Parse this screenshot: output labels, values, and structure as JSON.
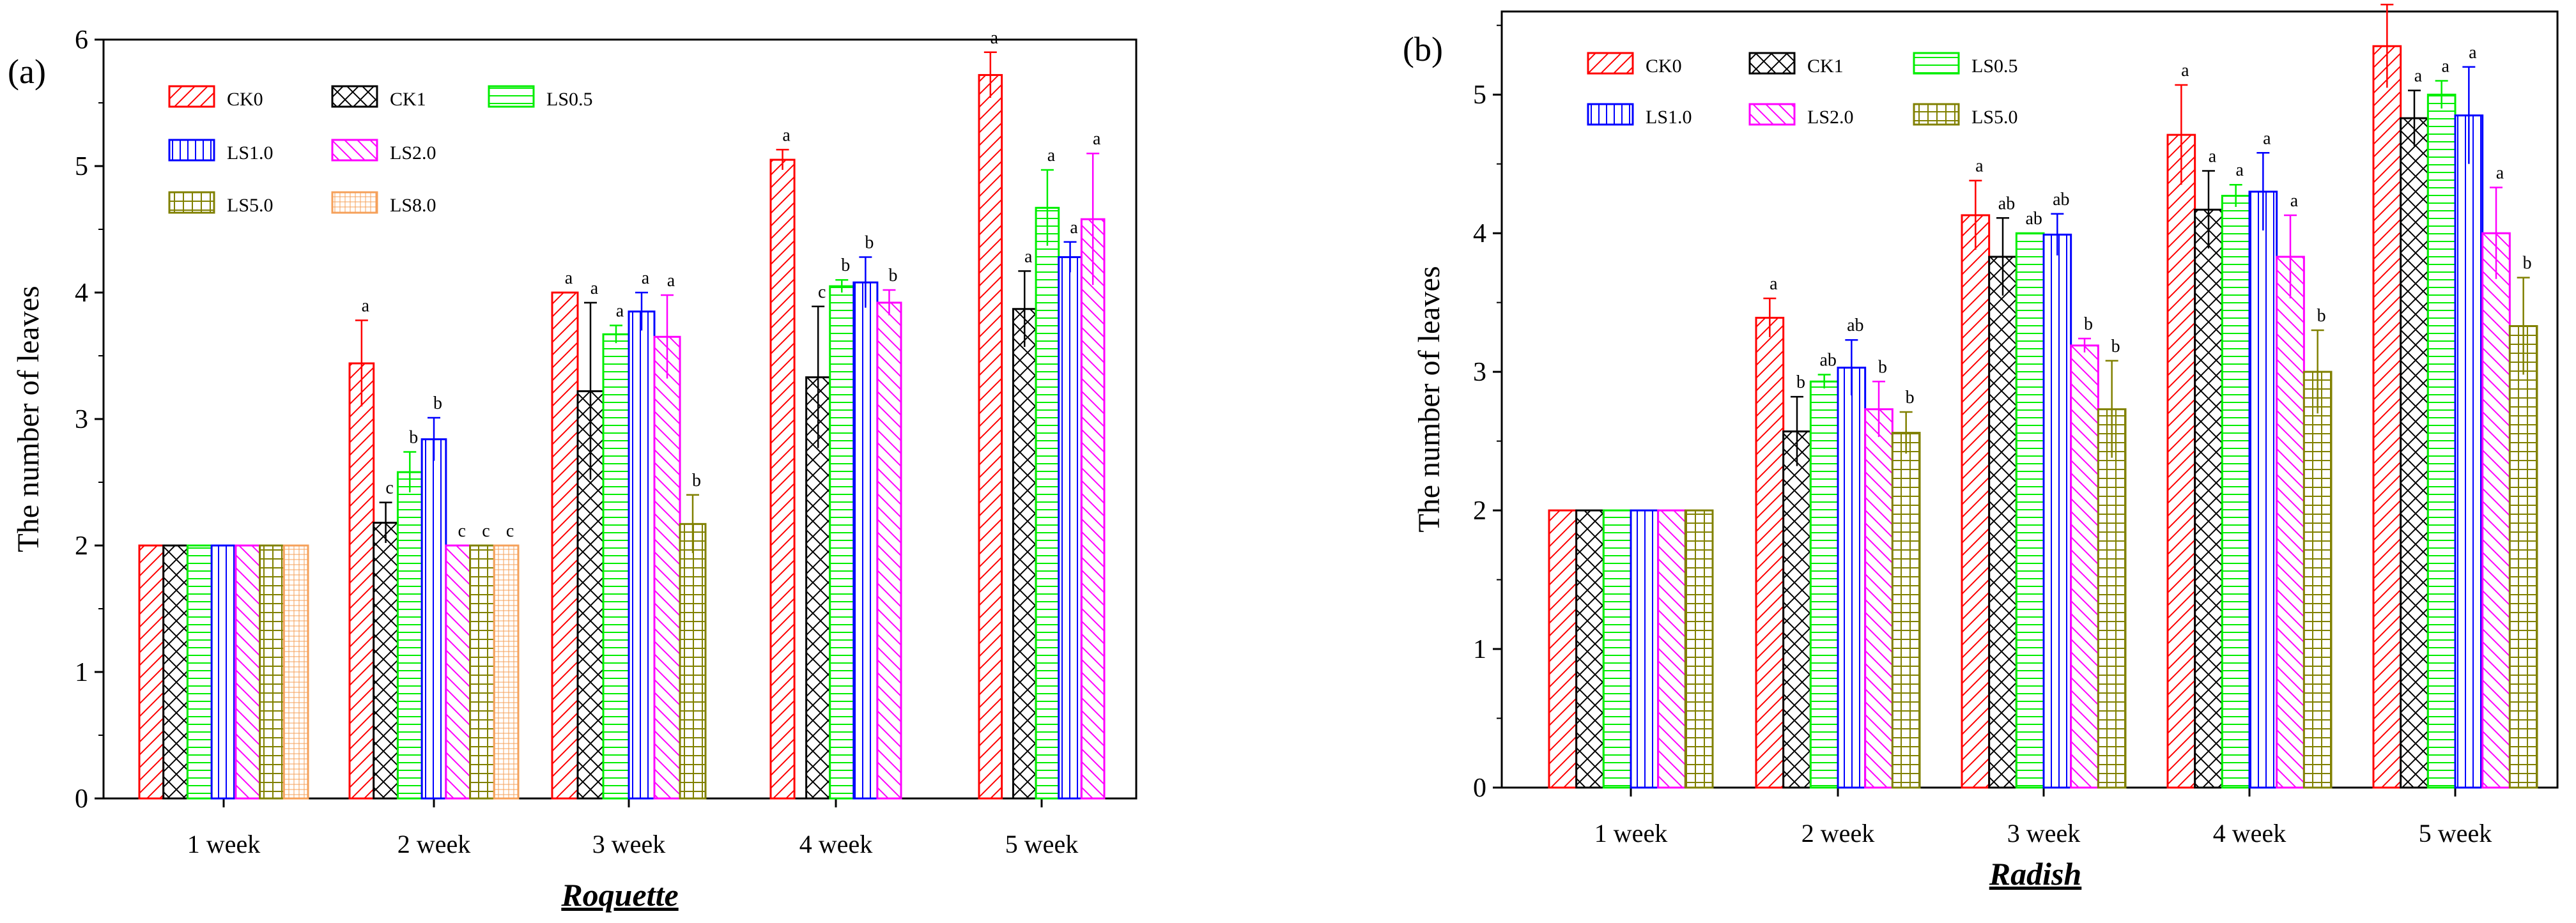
{
  "chart_data": [
    {
      "type": "bar",
      "panel_label": "(a)",
      "title": "Roquette",
      "xlabel": "",
      "ylabel": "The number of leaves",
      "ylim": [
        0,
        6
      ],
      "yticks": [
        "0",
        "1",
        "2",
        "3",
        "4",
        "5",
        "6"
      ],
      "categories": [
        "1 week",
        "2 week",
        "3 week",
        "4 week",
        "5 week"
      ],
      "series": [
        {
          "name": "CK0",
          "color": "#ff0000",
          "pattern": "diag",
          "values": [
            2,
            3.44,
            4.0,
            5.05,
            5.72
          ],
          "errors": [
            0,
            0.34,
            0,
            0.08,
            0.18
          ],
          "labels": [
            "",
            "a",
            "a",
            "a",
            "a"
          ]
        },
        {
          "name": "CK1",
          "color": "#000000",
          "pattern": "cross",
          "values": [
            2,
            2.18,
            3.22,
            3.33,
            3.87
          ],
          "errors": [
            0,
            0.16,
            0.7,
            0.56,
            0.3
          ],
          "labels": [
            "",
            "c",
            "a",
            "c",
            "a"
          ]
        },
        {
          "name": "LS0.5",
          "color": "#00ee00",
          "pattern": "hlines",
          "values": [
            2,
            2.58,
            3.67,
            4.05,
            4.67
          ],
          "errors": [
            0,
            0.16,
            0.07,
            0.05,
            0.3
          ],
          "labels": [
            "",
            "b",
            "a",
            "b",
            "a"
          ]
        },
        {
          "name": "LS1.0",
          "color": "#0000ff",
          "pattern": "vlines",
          "values": [
            2,
            2.84,
            3.85,
            4.08,
            4.28
          ],
          "errors": [
            0,
            0.17,
            0.15,
            0.2,
            0.12
          ],
          "labels": [
            "",
            "b",
            "a",
            "b",
            "a"
          ]
        },
        {
          "name": "LS2.0",
          "color": "#ff00ff",
          "pattern": "bdiag",
          "values": [
            2,
            2.0,
            3.65,
            3.92,
            4.58
          ],
          "errors": [
            0,
            0,
            0.33,
            0.1,
            0.52
          ],
          "labels": [
            "",
            "c",
            "a",
            "b",
            "a"
          ]
        },
        {
          "name": "LS5.0",
          "color": "#808000",
          "pattern": "grid",
          "values": [
            2,
            2.0,
            2.17,
            null,
            null
          ],
          "errors": [
            0,
            0,
            0.23,
            null,
            null
          ],
          "labels": [
            "",
            "c",
            "b",
            "",
            ""
          ]
        },
        {
          "name": "LS8.0",
          "color": "#f5a05a",
          "pattern": "fine",
          "values": [
            2,
            2.0,
            null,
            null,
            null
          ],
          "errors": [
            0,
            0,
            null,
            null,
            null
          ],
          "labels": [
            "",
            "c",
            "",
            "",
            ""
          ]
        }
      ]
    },
    {
      "type": "bar",
      "panel_label": "(b)",
      "title": "Radish",
      "xlabel": "",
      "ylabel": "The number of leaves",
      "ylim": [
        0,
        5.6
      ],
      "yticks": [
        "0",
        "1",
        "2",
        "3",
        "4",
        "5"
      ],
      "categories": [
        "1 week",
        "2 week",
        "3 week",
        "4 week",
        "5 week"
      ],
      "series": [
        {
          "name": "CK0",
          "color": "#ff0000",
          "pattern": "diag",
          "values": [
            2,
            3.39,
            4.13,
            4.71,
            5.35
          ],
          "errors": [
            0,
            0.14,
            0.25,
            0.36,
            0.3
          ],
          "labels": [
            "",
            "a",
            "a",
            "a",
            "a"
          ]
        },
        {
          "name": "CK1",
          "color": "#000000",
          "pattern": "cross",
          "values": [
            2,
            2.57,
            3.83,
            4.17,
            4.83
          ],
          "errors": [
            0,
            0.25,
            0.28,
            0.28,
            0.2
          ],
          "labels": [
            "",
            "b",
            "ab",
            "a",
            "a"
          ]
        },
        {
          "name": "LS0.5",
          "color": "#00ee00",
          "pattern": "hlines",
          "values": [
            2,
            2.93,
            4.0,
            4.27,
            5.0
          ],
          "errors": [
            0,
            0.05,
            0,
            0.08,
            0.1
          ],
          "labels": [
            "",
            "ab",
            "ab",
            "a",
            "a"
          ]
        },
        {
          "name": "LS1.0",
          "color": "#0000ff",
          "pattern": "vlines",
          "values": [
            2,
            3.03,
            3.99,
            4.3,
            4.85
          ],
          "errors": [
            0,
            0.2,
            0.15,
            0.28,
            0.35
          ],
          "labels": [
            "",
            "ab",
            "ab",
            "a",
            "a"
          ]
        },
        {
          "name": "LS2.0",
          "color": "#ff00ff",
          "pattern": "bdiag",
          "values": [
            2,
            2.73,
            3.19,
            3.83,
            4.0
          ],
          "errors": [
            0,
            0.2,
            0.05,
            0.3,
            0.33
          ],
          "labels": [
            "",
            "b",
            "b",
            "a",
            "a"
          ]
        },
        {
          "name": "LS5.0",
          "color": "#808000",
          "pattern": "grid",
          "values": [
            2,
            2.56,
            2.73,
            3.0,
            3.33
          ],
          "errors": [
            0,
            0.15,
            0.35,
            0.3,
            0.35
          ],
          "labels": [
            "",
            "b",
            "b",
            "b",
            "b"
          ]
        }
      ]
    }
  ]
}
